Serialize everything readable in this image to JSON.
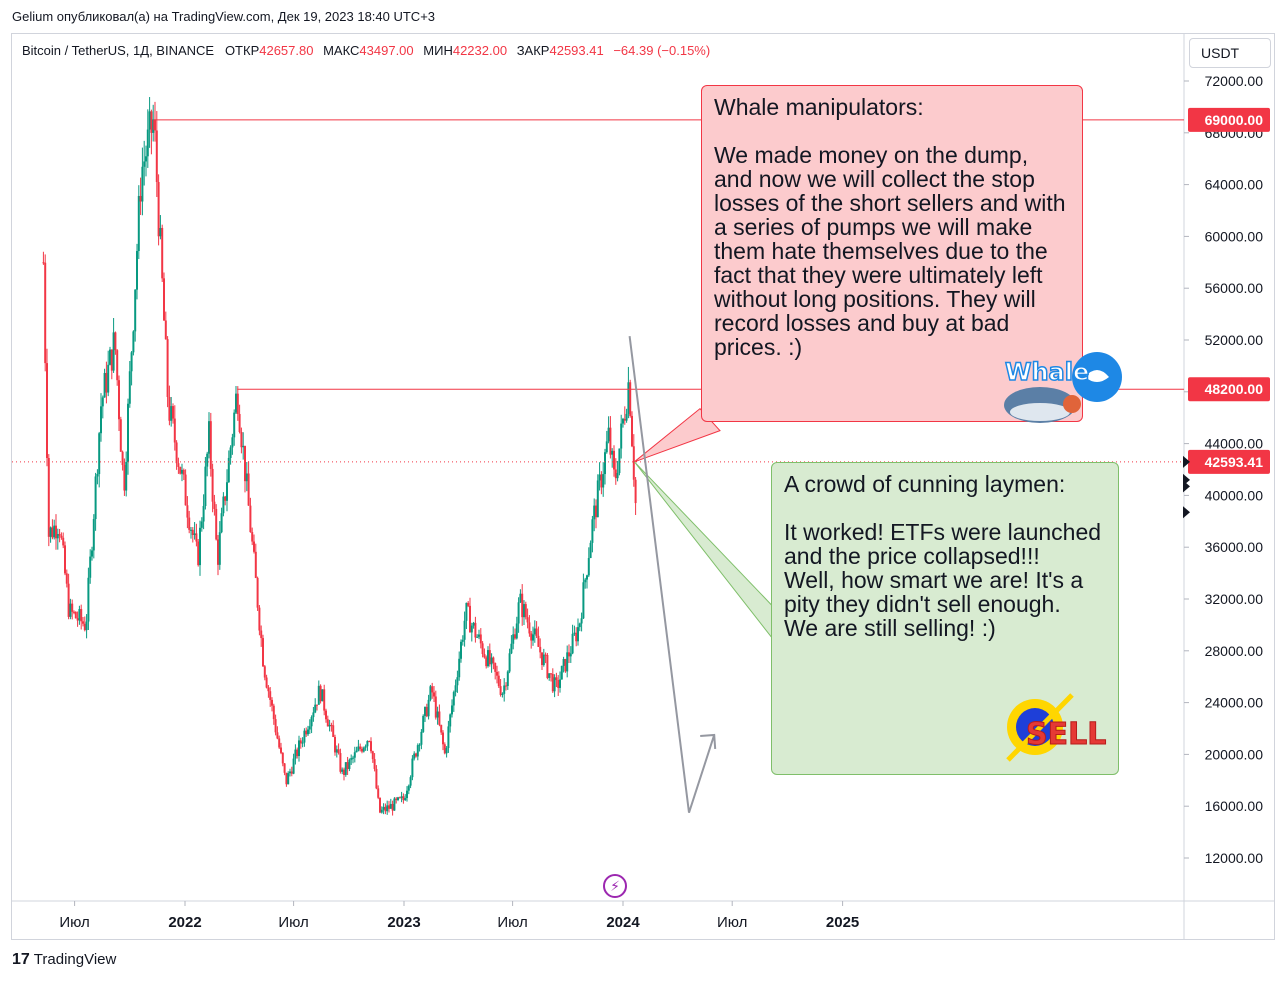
{
  "header": {
    "publish_line": "Gelium опубликовал(а) на TradingView.com, Дек 19, 2023 18:40 UTC+3"
  },
  "legend": {
    "symbol": "Bitcoin / TetherUS, 1Д, BINANCE",
    "open_label": "ОТКР",
    "open": "42657.80",
    "high_label": "МАКС",
    "high": "43497.00",
    "low_label": "МИН",
    "low": "42232.00",
    "close_label": "ЗАКР",
    "close": "42593.41",
    "change": "−64.39 (−0.15%)"
  },
  "currency": "USDT",
  "footer": {
    "brand": "TradingView",
    "mark": "17"
  },
  "colors": {
    "up": "#089981",
    "down": "#f23645",
    "line": "#f23645",
    "arrow": "#9598a1",
    "grid": "#d1d4dc"
  },
  "notes": {
    "whale": "Whale manipulators:\n\nWe made money on the dump, and now we will collect the stop losses of the short sellers and with a series of pumps we will make them hate themselves due to the fact that they were ultimately left without long positions. They will record losses and buy at bad prices. :)",
    "crowd": "A crowd of cunning laymen:\n\nIt worked! ETFs were launched and the price collapsed!!!\nWell, how smart we are! It's a pity they didn't sell enough.\nWe are still selling! :)",
    "whale_logo_text": "Whale",
    "sell_logo_text": "SELL"
  },
  "chart_data": {
    "type": "candlestick",
    "title": "Bitcoin / TetherUS, 1Д, BINANCE",
    "ylim": [
      9000,
      75000
    ],
    "y_ticks": [
      12000,
      16000,
      20000,
      24000,
      28000,
      32000,
      36000,
      40000,
      44000,
      48000,
      52000,
      56000,
      60000,
      64000,
      68000,
      72000
    ],
    "x_ticks": [
      "Июл",
      "2022",
      "Июл",
      "2023",
      "Июл",
      "2024",
      "Июл",
      "2025"
    ],
    "price_markers": [
      {
        "value": 69000.0,
        "label": "69000.00",
        "kind": "horizontal-line"
      },
      {
        "value": 48200.0,
        "label": "48200.00",
        "kind": "horizontal-line"
      },
      {
        "value": 42593.41,
        "label": "42593.41",
        "kind": "last-price"
      }
    ],
    "price_path": [
      [
        "2021-05-10",
        58000
      ],
      [
        "2021-05-19",
        37000
      ],
      [
        "2021-06-05",
        38000
      ],
      [
        "2021-06-22",
        31000
      ],
      [
        "2021-07-20",
        30000
      ],
      [
        "2021-08-14",
        47000
      ],
      [
        "2021-09-06",
        52000
      ],
      [
        "2021-09-21",
        40500
      ],
      [
        "2021-10-20",
        65000
      ],
      [
        "2021-11-10",
        69000
      ],
      [
        "2021-12-04",
        47000
      ],
      [
        "2022-01-22",
        35000
      ],
      [
        "2022-02-10",
        44500
      ],
      [
        "2022-02-24",
        35000
      ],
      [
        "2022-03-29",
        48200
      ],
      [
        "2022-05-12",
        27000
      ],
      [
        "2022-06-18",
        17800
      ],
      [
        "2022-08-14",
        25000
      ],
      [
        "2022-09-20",
        18500
      ],
      [
        "2022-11-05",
        21500
      ],
      [
        "2022-11-21",
        15500
      ],
      [
        "2022-12-31",
        16500
      ],
      [
        "2023-02-16",
        25000
      ],
      [
        "2023-03-10",
        20000
      ],
      [
        "2023-04-14",
        31000
      ],
      [
        "2023-06-15",
        24800
      ],
      [
        "2023-07-13",
        31800
      ],
      [
        "2023-09-11",
        25000
      ],
      [
        "2023-10-20",
        30000
      ],
      [
        "2023-11-10",
        37500
      ],
      [
        "2023-12-08",
        44500
      ],
      [
        "2023-12-18",
        41000
      ],
      [
        "2024-01-11",
        49000
      ],
      [
        "2024-01-23",
        38500
      ]
    ],
    "projection_arrow": [
      [
        "2024-01-12",
        52300
      ],
      [
        "2024-04-20",
        15500
      ],
      [
        "2024-06-01",
        21500
      ]
    ]
  }
}
